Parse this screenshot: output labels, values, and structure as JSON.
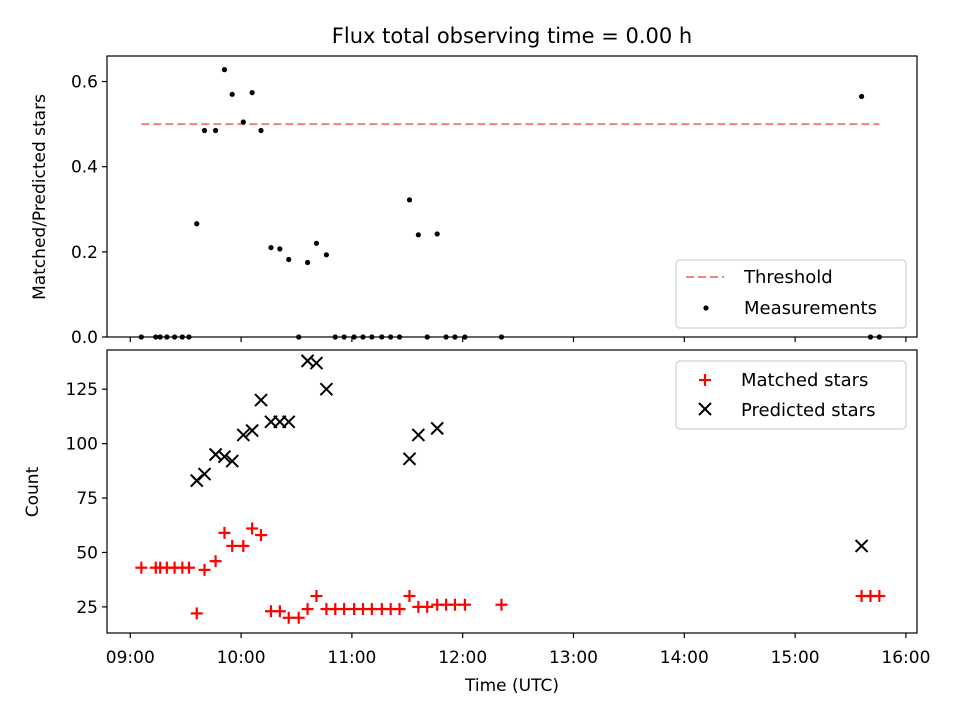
{
  "title": "Flux total observing time = 0.00 h",
  "chart_data": [
    {
      "type": "scatter",
      "ylabel": "Matched/Predicted stars",
      "ylim": [
        0,
        0.66
      ],
      "yticks": [
        0.0,
        0.2,
        0.4,
        0.6
      ],
      "ytick_labels": [
        "0.0",
        "0.2",
        "0.4",
        "0.6"
      ],
      "threshold": {
        "name": "Threshold",
        "value": 0.5,
        "x_start": 9.1,
        "x_end": 15.76,
        "color": "#f08080"
      },
      "series": [
        {
          "name": "Measurements",
          "color": "#000000",
          "marker": "dot",
          "points": [
            [
              9.1,
              0
            ],
            [
              9.23,
              0
            ],
            [
              9.27,
              0
            ],
            [
              9.33,
              0
            ],
            [
              9.4,
              0
            ],
            [
              9.47,
              0
            ],
            [
              9.53,
              0
            ],
            [
              9.6,
              0.266
            ],
            [
              9.67,
              0.485
            ],
            [
              9.77,
              0.485
            ],
            [
              9.85,
              0.628
            ],
            [
              9.92,
              0.57
            ],
            [
              10.02,
              0.505
            ],
            [
              10.1,
              0.574
            ],
            [
              10.18,
              0.485
            ],
            [
              10.27,
              0.21
            ],
            [
              10.35,
              0.207
            ],
            [
              10.43,
              0.182
            ],
            [
              10.52,
              0
            ],
            [
              10.6,
              0.175
            ],
            [
              10.68,
              0.22
            ],
            [
              10.77,
              0.193
            ],
            [
              10.85,
              0
            ],
            [
              10.93,
              0
            ],
            [
              11.02,
              0
            ],
            [
              11.1,
              0
            ],
            [
              11.18,
              0
            ],
            [
              11.27,
              0
            ],
            [
              11.35,
              0
            ],
            [
              11.43,
              0
            ],
            [
              11.52,
              0.322
            ],
            [
              11.6,
              0.24
            ],
            [
              11.68,
              0
            ],
            [
              11.77,
              0.242
            ],
            [
              11.85,
              0
            ],
            [
              11.93,
              0
            ],
            [
              12.02,
              0
            ],
            [
              12.35,
              0
            ],
            [
              15.6,
              0.565
            ],
            [
              15.68,
              0
            ],
            [
              15.76,
              0
            ]
          ]
        }
      ],
      "legend": {
        "position": "lower-right",
        "entries": [
          "Threshold",
          "Measurements"
        ]
      }
    },
    {
      "type": "scatter",
      "xlabel": "Time (UTC)",
      "ylabel": "Count",
      "ylim": [
        13,
        143
      ],
      "yticks": [
        25,
        50,
        75,
        100,
        125
      ],
      "ytick_labels": [
        "25",
        "50",
        "75",
        "100",
        "125"
      ],
      "xlim": [
        8.79,
        16.1
      ],
      "xticks": [
        9,
        10,
        11,
        12,
        13,
        14,
        15,
        16
      ],
      "xtick_labels": [
        "09:00",
        "10:00",
        "11:00",
        "12:00",
        "13:00",
        "14:00",
        "15:00",
        "16:00"
      ],
      "series": [
        {
          "name": "Matched stars",
          "color": "#ff0000",
          "marker": "plus",
          "points": [
            [
              9.1,
              43
            ],
            [
              9.23,
              43
            ],
            [
              9.27,
              43
            ],
            [
              9.33,
              43
            ],
            [
              9.4,
              43
            ],
            [
              9.47,
              43
            ],
            [
              9.53,
              43
            ],
            [
              9.6,
              22
            ],
            [
              9.67,
              42
            ],
            [
              9.77,
              46
            ],
            [
              9.85,
              59
            ],
            [
              9.92,
              53
            ],
            [
              10.02,
              53
            ],
            [
              10.1,
              61
            ],
            [
              10.18,
              58
            ],
            [
              10.27,
              23
            ],
            [
              10.35,
              23
            ],
            [
              10.43,
              20
            ],
            [
              10.52,
              20
            ],
            [
              10.6,
              24
            ],
            [
              10.68,
              30
            ],
            [
              10.77,
              24
            ],
            [
              10.85,
              24
            ],
            [
              10.93,
              24
            ],
            [
              11.02,
              24
            ],
            [
              11.1,
              24
            ],
            [
              11.18,
              24
            ],
            [
              11.27,
              24
            ],
            [
              11.35,
              24
            ],
            [
              11.43,
              24
            ],
            [
              11.52,
              30
            ],
            [
              11.6,
              25
            ],
            [
              11.68,
              25
            ],
            [
              11.77,
              26
            ],
            [
              11.85,
              26
            ],
            [
              11.93,
              26
            ],
            [
              12.02,
              26
            ],
            [
              12.35,
              26
            ],
            [
              15.6,
              30
            ],
            [
              15.68,
              30
            ],
            [
              15.76,
              30
            ]
          ]
        },
        {
          "name": "Predicted stars",
          "color": "#000000",
          "marker": "cross",
          "points": [
            [
              9.6,
              83
            ],
            [
              9.67,
              86
            ],
            [
              9.77,
              95
            ],
            [
              9.85,
              94
            ],
            [
              9.92,
              92
            ],
            [
              10.02,
              104
            ],
            [
              10.1,
              106
            ],
            [
              10.18,
              120
            ],
            [
              10.27,
              110
            ],
            [
              10.35,
              110
            ],
            [
              10.43,
              110
            ],
            [
              10.6,
              138
            ],
            [
              10.68,
              137
            ],
            [
              10.77,
              125
            ],
            [
              11.52,
              93
            ],
            [
              11.6,
              104
            ],
            [
              11.77,
              107
            ],
            [
              15.6,
              53
            ]
          ]
        }
      ],
      "legend": {
        "position": "upper-right",
        "entries": [
          "Matched stars",
          "Predicted stars"
        ]
      }
    }
  ]
}
